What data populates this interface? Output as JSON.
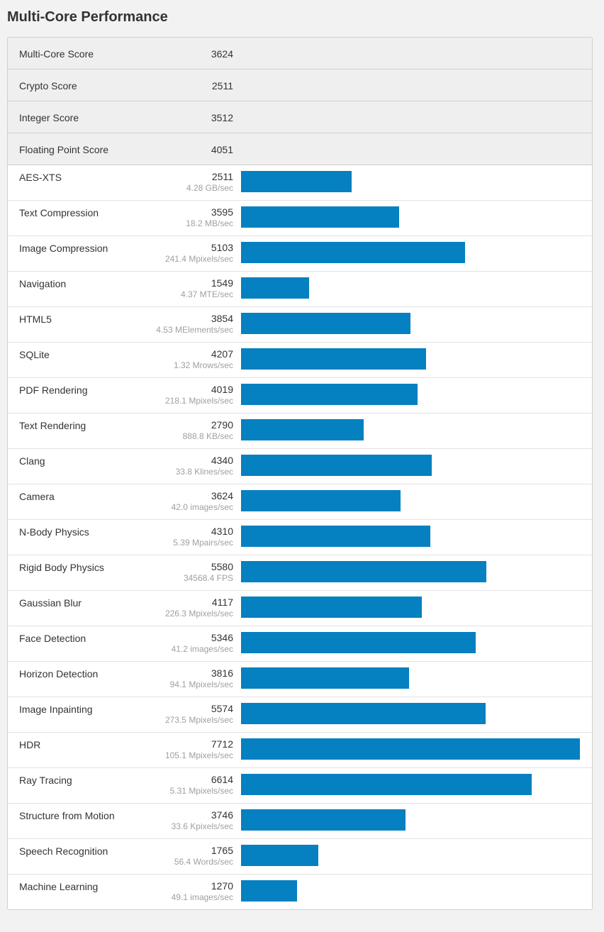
{
  "page_title": "Multi-Core Performance",
  "colors": {
    "bar": "#0580c0",
    "rate_text": "#a0a0a0",
    "score_row_bg": "#efefef"
  },
  "scores": [
    {
      "label": "Multi-Core Score",
      "value": "3624"
    },
    {
      "label": "Crypto Score",
      "value": "2511"
    },
    {
      "label": "Integer Score",
      "value": "3512"
    },
    {
      "label": "Floating Point Score",
      "value": "4051"
    }
  ],
  "chart_data": {
    "type": "bar",
    "orientation": "horizontal",
    "xlim": [
      0,
      7712
    ],
    "categories": [
      "AES-XTS",
      "Text Compression",
      "Image Compression",
      "Navigation",
      "HTML5",
      "SQLite",
      "PDF Rendering",
      "Text Rendering",
      "Clang",
      "Camera",
      "N-Body Physics",
      "Rigid Body Physics",
      "Gaussian Blur",
      "Face Detection",
      "Horizon Detection",
      "Image Inpainting",
      "HDR",
      "Ray Tracing",
      "Structure from Motion",
      "Speech Recognition",
      "Machine Learning"
    ],
    "values": [
      2511,
      3595,
      5103,
      1549,
      3854,
      4207,
      4019,
      2790,
      4340,
      3624,
      4310,
      5580,
      4117,
      5346,
      3816,
      5574,
      7712,
      6614,
      3746,
      1765,
      1270
    ],
    "rates": [
      "4.28 GB/sec",
      "18.2 MB/sec",
      "241.4 Mpixels/sec",
      "4.37 MTE/sec",
      "4.53 MElements/sec",
      "1.32 Mrows/sec",
      "218.1 Mpixels/sec",
      "888.8 KB/sec",
      "33.8 Klines/sec",
      "42.0 images/sec",
      "5.39 Mpairs/sec",
      "34568.4 FPS",
      "226.3 Mpixels/sec",
      "41.2 images/sec",
      "94.1 Mpixels/sec",
      "273.5 Mpixels/sec",
      "105.1 Mpixels/sec",
      "5.31 Mpixels/sec",
      "33.6 Kpixels/sec",
      "56.4 Words/sec",
      "49.1 images/sec"
    ]
  }
}
